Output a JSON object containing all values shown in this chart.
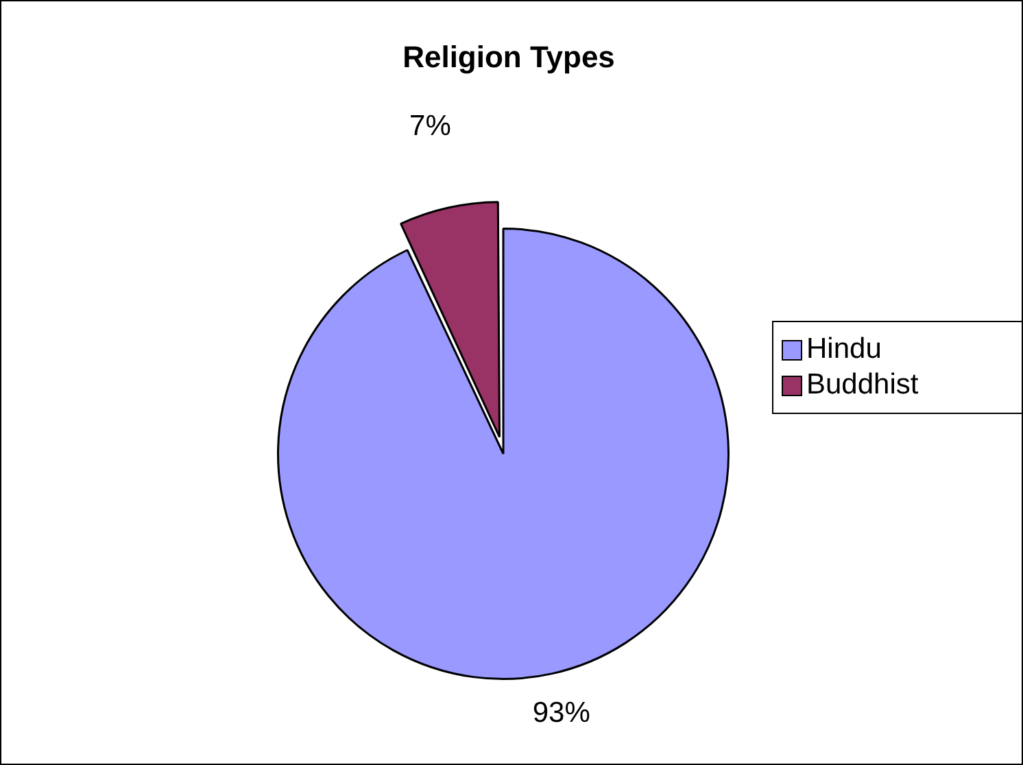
{
  "chart_data": {
    "type": "pie",
    "title": "Religion Types",
    "categories": [
      "Hindu",
      "Buddhist"
    ],
    "values": [
      93,
      7
    ],
    "colors": [
      "#9999ff",
      "#993366"
    ],
    "value_labels": [
      "93%",
      "7%"
    ],
    "legend": "right"
  }
}
